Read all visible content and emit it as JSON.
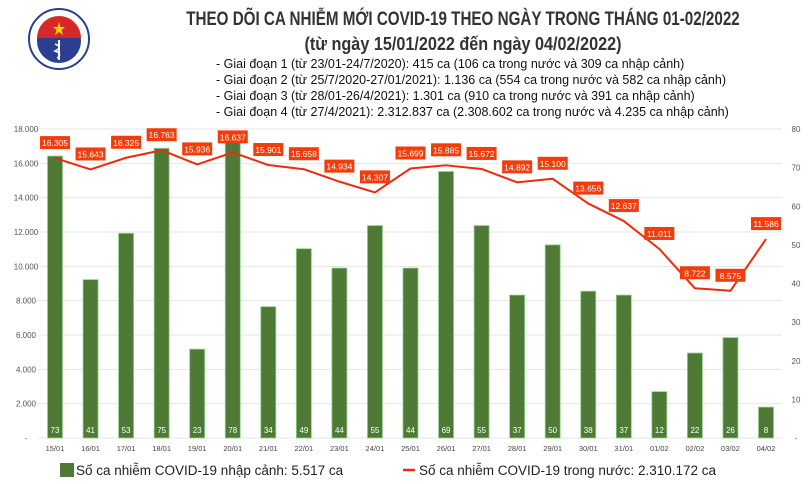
{
  "logo": {
    "text": "BỘ Y TẾ · MINISTRY OF HEALTH"
  },
  "title": "THEO DÕI CA NHIỄM MỚI COVID-19 THEO NGÀY TRONG THÁNG 01-02/2022",
  "subtitle": "(từ ngày 15/01/2022 đến ngày 04/02/2022)",
  "notes": [
    "- Giai đoạn 1 (từ 23/01-24/7/2020): 415 ca (106 ca trong nước và 309 ca nhập cảnh)",
    "- Giai đoạn 2 (từ 25/7/2020-27/01/2021): 1.136 ca (554 ca trong nước và 582 ca nhập cảnh)",
    "- Giai đoạn 3 (từ 28/01-26/4/2021): 1.301 ca (910 ca trong nước và 391 ca nhập cảnh)",
    "- Giai đoạn 4 (từ 27/4/2021): 2.312.837 ca (2.308.602 ca trong nước và 4.235 ca nhập cảnh)"
  ],
  "chart_data": {
    "type": "bar+line",
    "categories": [
      "15/01",
      "16/01",
      "17/01",
      "18/01",
      "19/01",
      "20/01",
      "21/01",
      "22/01",
      "23/01",
      "24/01",
      "25/01",
      "26/01",
      "27/01",
      "28/01",
      "29/01",
      "30/01",
      "31/01",
      "01/02",
      "02/02",
      "03/02",
      "04/02"
    ],
    "series": [
      {
        "name": "Số ca nhiễm COVID-19 nhập cảnh: 5.517 ca",
        "type": "bar",
        "axis": "right",
        "color": "#4e7a35",
        "values": [
          73,
          41,
          53,
          75,
          23,
          78,
          34,
          49,
          44,
          55,
          44,
          69,
          55,
          37,
          50,
          38,
          37,
          12,
          22,
          26,
          8
        ],
        "labels": [
          "73",
          "41",
          "53",
          "75",
          "23",
          "78",
          "34",
          "49",
          "44",
          "55",
          "44",
          "69",
          "55",
          "37",
          "50",
          "38",
          "37",
          "12",
          "22",
          "26",
          "8"
        ]
      },
      {
        "name": "Số ca nhiễm COVID-19 trong nước: 2.310.172 ca",
        "type": "line",
        "axis": "left",
        "color": "#ee2a0c",
        "values": [
          16305,
          15643,
          16325,
          16763,
          15936,
          16637,
          15901,
          15658,
          14934,
          14307,
          15699,
          15885,
          15672,
          14892,
          15100,
          13656,
          12637,
          11011,
          8722,
          8575,
          11586
        ],
        "labels": [
          "16.305",
          "15.643",
          "16.325",
          "16.763",
          "15.936",
          "16.637",
          "15.901",
          "15.658",
          "14.934",
          "14.307",
          "15.699",
          "15.885",
          "15.672",
          "14.892",
          "15.100",
          "13.656",
          "12.637",
          "11.011",
          "8.722",
          "8.575",
          "11.586"
        ]
      }
    ],
    "left_axis": {
      "ylim": [
        0,
        18000
      ],
      "ticks": [
        "-",
        "2.000",
        "4.000",
        "6.000",
        "8.000",
        "10.000",
        "12.000",
        "14.000",
        "16.000",
        "18.000"
      ]
    },
    "right_axis": {
      "ylim": [
        0,
        80
      ],
      "ticks": [
        "-",
        "10",
        "20",
        "30",
        "40",
        "50",
        "60",
        "70",
        "80"
      ]
    },
    "grid": true,
    "legend": "bottom"
  }
}
